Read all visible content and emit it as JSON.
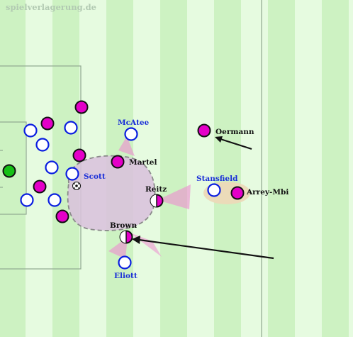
{
  "watermark": "spielverlagerung.de",
  "colors": {
    "pitch_light": "#e6fbe0",
    "pitch_dark": "#cdf2c2",
    "line": "#8fa88f",
    "team_a": "#e400c8",
    "team_b_stroke": "#0a1ee0",
    "team_b_label": "#1a2fd8",
    "goalkeeper": "#16c016",
    "label_dark": "#111111",
    "arrow": "#111111",
    "zone_fill": "#d9c2dc",
    "pressure_cone": "#ec8ccf",
    "pair_highlight": "#ecd9b8"
  },
  "labels": {
    "mcatee": "McAtee",
    "scott": "Scott",
    "martel": "Martel",
    "reitz": "Reitz",
    "brown": "Brown",
    "eliott": "Eliott",
    "oermann": "Oermann",
    "stansfield": "Stansfield",
    "arrey_mbi": "Arrey-Mbi"
  }
}
